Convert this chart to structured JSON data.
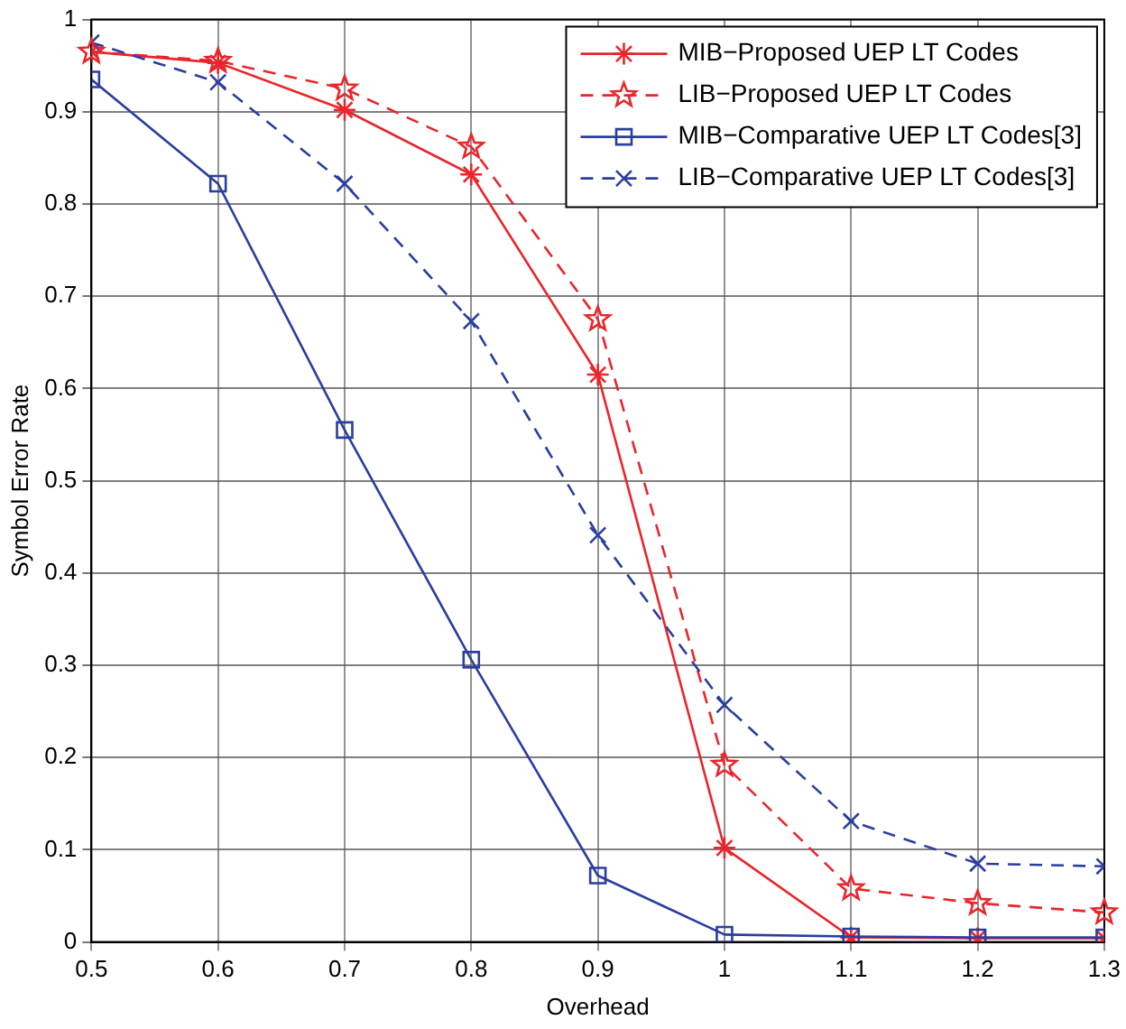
{
  "chart_data": {
    "type": "line",
    "xlabel": "Overhead",
    "ylabel": "Symbol Error Rate",
    "x": [
      0.5,
      0.6,
      0.7,
      0.8,
      0.9,
      1.0,
      1.1,
      1.2,
      1.3
    ],
    "xlim": [
      0.5,
      1.3
    ],
    "xticks": [
      0.5,
      0.6,
      0.7,
      0.8,
      0.9,
      1,
      1.1,
      1.2,
      1.3
    ],
    "ylim": [
      0,
      1
    ],
    "yticks": [
      0,
      0.1,
      0.2,
      0.3,
      0.4,
      0.5,
      0.6,
      0.7,
      0.8,
      0.9,
      1
    ],
    "grid": true,
    "legend": "top right",
    "series": [
      {
        "name": "MIB−Proposed UEP LT Codes",
        "color": "#e8262b",
        "marker": "cross",
        "line_style": "solid",
        "values": [
          0.965,
          0.953,
          0.902,
          0.832,
          0.615,
          0.102,
          0.005,
          0.004,
          0.004
        ]
      },
      {
        "name": "LIB−Proposed UEP LT Codes",
        "color": "#e8262b",
        "marker": "star",
        "line_style": "dashed",
        "values": [
          0.965,
          0.955,
          0.925,
          0.862,
          0.675,
          0.192,
          0.058,
          0.042,
          0.032
        ]
      },
      {
        "name": "MIB−Comparative UEP LT Codes[3]",
        "color": "#2a3ea0",
        "marker": "square",
        "line_style": "solid",
        "values": [
          0.935,
          0.822,
          0.555,
          0.306,
          0.072,
          0.008,
          0.006,
          0.005,
          0.005
        ]
      },
      {
        "name": "LIB−Comparative UEP LT Codes[3]",
        "color": "#2a3ea0",
        "marker": "x",
        "line_style": "dashed",
        "values": [
          0.975,
          0.932,
          0.822,
          0.673,
          0.441,
          0.257,
          0.131,
          0.085,
          0.082
        ]
      }
    ]
  }
}
